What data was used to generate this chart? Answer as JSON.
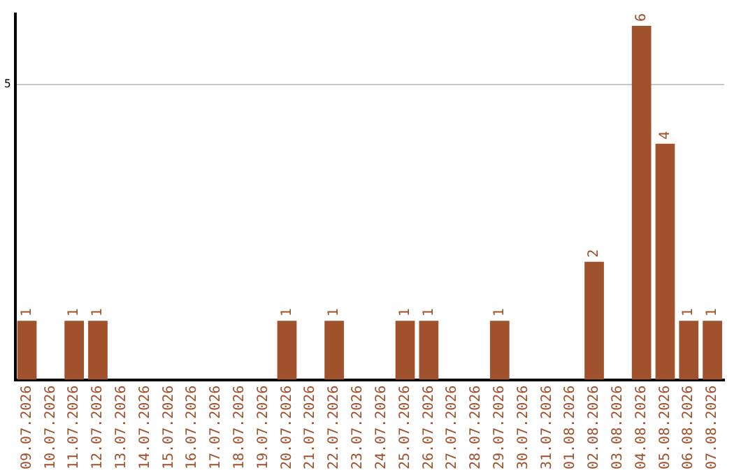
{
  "chart_data": {
    "type": "bar",
    "categories": [
      "09.07.2026",
      "10.07.2026",
      "11.07.2026",
      "12.07.2026",
      "13.07.2026",
      "14.07.2026",
      "15.07.2026",
      "16.07.2026",
      "17.07.2026",
      "18.07.2026",
      "19.07.2026",
      "20.07.2026",
      "21.07.2026",
      "22.07.2026",
      "23.07.2026",
      "24.07.2026",
      "25.07.2026",
      "26.07.2026",
      "27.07.2026",
      "28.07.2026",
      "29.07.2026",
      "30.07.2026",
      "31.07.2026",
      "01.08.2026",
      "02.08.2026",
      "03.08.2026",
      "04.08.2026",
      "05.08.2026",
      "06.08.2026",
      "07.08.2026"
    ],
    "values": [
      1,
      0,
      1,
      1,
      0,
      0,
      0,
      0,
      0,
      0,
      0,
      1,
      0,
      1,
      0,
      0,
      1,
      1,
      0,
      0,
      1,
      0,
      0,
      0,
      2,
      0,
      6,
      4,
      1,
      1
    ],
    "value_labels": [
      "1",
      null,
      "1",
      "1",
      null,
      null,
      null,
      null,
      null,
      null,
      null,
      "1",
      null,
      "1",
      null,
      null,
      "1",
      "1",
      null,
      null,
      "1",
      null,
      null,
      null,
      "2",
      null,
      "6",
      "4",
      "1",
      "1"
    ],
    "color": "#a0522d",
    "ylim": [
      0,
      6.2
    ],
    "yticks": [
      5
    ],
    "grid": "y",
    "legend": false
  }
}
